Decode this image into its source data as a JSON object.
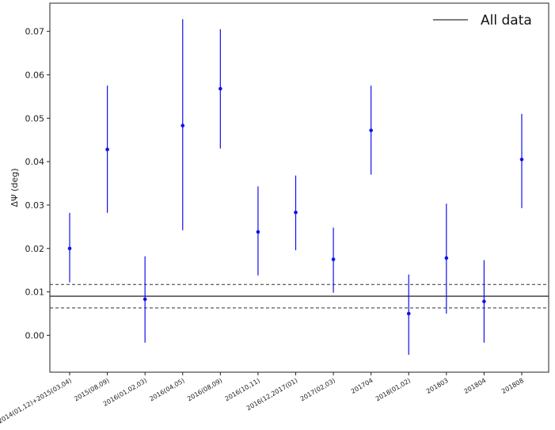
{
  "chart_data": {
    "type": "scatter",
    "title": "",
    "xlabel": "",
    "ylabel": "ΔΨ (deg)",
    "ylim": [
      -0.0085,
      0.0765
    ],
    "yticks": [
      0.0,
      0.01,
      0.02,
      0.03,
      0.04,
      0.05,
      0.06,
      0.07
    ],
    "ytick_labels": [
      "0.00",
      "0.01",
      "0.02",
      "0.03",
      "0.04",
      "0.05",
      "0.06",
      "0.07"
    ],
    "grid": false,
    "legend_position": "top-right",
    "categories": [
      "2014(01,12)+2015(03,04)",
      "2015(08,09)",
      "2016(01,02,03)",
      "2016(04,05)",
      "2016(08,09)",
      "2016(10,11)",
      "2016(12,2017(01)",
      "2017(02,03)",
      "201704",
      "2018(01,02)",
      "201803",
      "201804",
      "201808"
    ],
    "series": [
      {
        "name": "",
        "color": "#1010ee",
        "values": [
          0.02,
          0.0428,
          0.0083,
          0.0483,
          0.0568,
          0.0238,
          0.0283,
          0.0175,
          0.0472,
          0.005,
          0.0178,
          0.0078,
          0.0405
        ],
        "err_low": [
          0.0122,
          0.0282,
          -0.0017,
          0.0242,
          0.043,
          0.0138,
          0.0196,
          0.0098,
          0.037,
          -0.0045,
          0.005,
          -0.0017,
          0.0293
        ],
        "err_high": [
          0.0282,
          0.0575,
          0.0182,
          0.0728,
          0.0705,
          0.0343,
          0.0368,
          0.0248,
          0.0575,
          0.014,
          0.0303,
          0.0173,
          0.051
        ]
      }
    ],
    "reference_lines": [
      {
        "name": "All data",
        "y": 0.009,
        "style": "solid",
        "color": "#333333"
      },
      {
        "name": "upper",
        "y": 0.0117,
        "style": "dashed",
        "color": "#333333"
      },
      {
        "name": "lower",
        "y": 0.0063,
        "style": "dashed",
        "color": "#333333"
      }
    ],
    "legend": [
      {
        "label": "All data",
        "style": "solid",
        "color": "#333333"
      }
    ]
  }
}
